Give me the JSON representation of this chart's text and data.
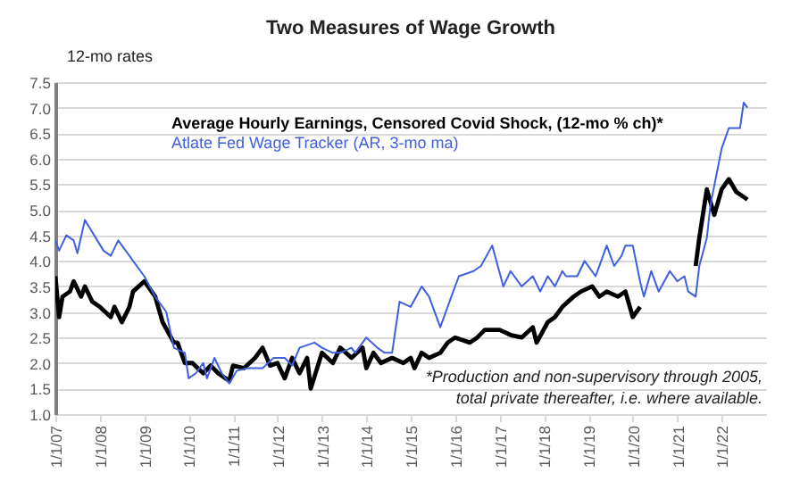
{
  "chart_data": {
    "type": "line",
    "title": "Two Measures of Wage Growth",
    "ylabel": "12-mo rates",
    "annotations": [
      "*Production and non-supervisory through 2005,\ntotal private thereafter, i.e. where available."
    ],
    "legend": "top",
    "grid": "y",
    "xlim": [
      "2007-01-01",
      "2023-01-01"
    ],
    "xticks": [
      {
        "value": "2007-01-01",
        "label": "1/1/07"
      },
      {
        "value": "2008-01-01",
        "label": "1/1/08"
      },
      {
        "value": "2009-01-01",
        "label": "1/1/09"
      },
      {
        "value": "2010-01-01",
        "label": "1/1/10"
      },
      {
        "value": "2011-01-01",
        "label": "1/1/11"
      },
      {
        "value": "2012-01-01",
        "label": "1/1/12"
      },
      {
        "value": "2013-01-01",
        "label": "1/1/13"
      },
      {
        "value": "2014-01-01",
        "label": "1/1/14"
      },
      {
        "value": "2015-01-01",
        "label": "1/1/15"
      },
      {
        "value": "2016-01-01",
        "label": "1/1/16"
      },
      {
        "value": "2017-01-01",
        "label": "1/1/17"
      },
      {
        "value": "2018-01-01",
        "label": "1/1/18"
      },
      {
        "value": "2019-01-01",
        "label": "1/1/19"
      },
      {
        "value": "2020-01-01",
        "label": "1/1/20"
      },
      {
        "value": "2021-01-01",
        "label": "1/1/21"
      },
      {
        "value": "2022-01-01",
        "label": "1/1/22"
      }
    ],
    "ylim": [
      1.0,
      7.5
    ],
    "yticks": [
      {
        "value": 1,
        "label": "1.0"
      },
      {
        "value": 1.5,
        "label": "1.5"
      },
      {
        "value": 2,
        "label": "2.0"
      },
      {
        "value": 2.5,
        "label": "2.5"
      },
      {
        "value": 3,
        "label": "3.0"
      },
      {
        "value": 3.5,
        "label": "3.5"
      },
      {
        "value": 4,
        "label": "4.0"
      },
      {
        "value": 4.5,
        "label": "4.5"
      },
      {
        "value": 5,
        "label": "5.0"
      },
      {
        "value": 5.5,
        "label": "5.5"
      },
      {
        "value": 6,
        "label": "6.0"
      },
      {
        "value": 6.5,
        "label": "6.5"
      },
      {
        "value": 7,
        "label": "7.0"
      },
      {
        "value": 7.5,
        "label": "7.5"
      }
    ],
    "series": [
      {
        "name": "Average Hourly Earnings, Censored Covid Shock,  (12-mo % ch)*",
        "color": "#000000",
        "x": [
          "2007-01",
          "2007-02",
          "2007-03",
          "2007-05",
          "2007-06",
          "2007-08",
          "2007-09",
          "2007-11",
          "2008-01",
          "2008-04",
          "2008-05",
          "2008-07",
          "2008-09",
          "2008-10",
          "2009-01",
          "2009-02",
          "2009-04",
          "2009-06",
          "2009-09",
          "2009-10",
          "2009-12",
          "2010-02",
          "2010-05",
          "2010-07",
          "2010-09",
          "2010-12",
          "2011-01",
          "2011-04",
          "2011-07",
          "2011-09",
          "2011-11",
          "2012-01",
          "2012-03",
          "2012-05",
          "2012-07",
          "2012-09",
          "2012-10",
          "2013-01",
          "2013-04",
          "2013-06",
          "2013-09",
          "2013-12",
          "2014-01",
          "2014-03",
          "2014-05",
          "2014-08",
          "2014-11",
          "2015-01",
          "2015-02",
          "2015-04",
          "2015-06",
          "2015-09",
          "2015-11",
          "2016-01",
          "2016-05",
          "2016-07",
          "2016-09",
          "2017-01",
          "2017-04",
          "2017-07",
          "2017-10",
          "2017-11",
          "2018-02",
          "2018-04",
          "2018-06",
          "2018-09",
          "2018-11",
          "2019-02",
          "2019-04",
          "2019-06",
          "2019-09",
          "2019-11",
          "2020-01",
          "2020-03",
          "2020-09",
          "2021-06",
          "2021-07",
          "2021-09",
          "2021-11",
          "2022-01",
          "2022-03",
          "2022-05",
          "2022-08"
        ],
        "values": [
          3.7,
          2.9,
          3.3,
          3.4,
          3.6,
          3.3,
          3.5,
          3.2,
          3.1,
          2.9,
          3.1,
          2.8,
          3.1,
          3.4,
          3.6,
          3.5,
          3.3,
          2.8,
          2.4,
          2.4,
          2.0,
          2.0,
          1.8,
          1.95,
          1.8,
          1.65,
          1.95,
          1.9,
          2.1,
          2.3,
          1.95,
          2.0,
          1.7,
          2.1,
          1.8,
          2.1,
          1.5,
          2.2,
          2.0,
          2.3,
          2.1,
          2.3,
          1.9,
          2.2,
          2.0,
          2.1,
          2.0,
          2.1,
          1.9,
          2.2,
          2.1,
          2.2,
          2.4,
          2.5,
          2.4,
          2.5,
          2.65,
          2.65,
          2.55,
          2.5,
          2.7,
          2.4,
          2.8,
          2.9,
          3.1,
          3.3,
          3.4,
          3.5,
          3.3,
          3.4,
          3.3,
          3.4,
          2.9,
          3.1,
          null,
          3.9,
          4.45,
          5.4,
          4.9,
          5.4,
          5.6,
          5.35,
          5.2
        ]
      },
      {
        "name": "Atlate Fed Wage Tracker (AR, 3-mo ma)",
        "color": "#3f5fe0",
        "x": [
          "2007-01",
          "2007-02",
          "2007-04",
          "2007-06",
          "2007-07",
          "2007-09",
          "2008-02",
          "2008-04",
          "2008-06",
          "2008-09",
          "2009-01",
          "2009-04",
          "2009-07",
          "2009-09",
          "2009-12",
          "2010-01",
          "2010-03",
          "2010-05",
          "2010-06",
          "2010-08",
          "2010-10",
          "2010-12",
          "2011-02",
          "2011-05",
          "2011-09",
          "2011-12",
          "2012-03",
          "2012-05",
          "2012-07",
          "2012-11",
          "2013-01",
          "2013-04",
          "2013-06",
          "2013-09",
          "2013-10",
          "2014-01",
          "2014-04",
          "2014-06",
          "2014-08",
          "2014-10",
          "2015-01",
          "2015-04",
          "2015-06",
          "2015-09",
          "2015-12",
          "2016-02",
          "2016-06",
          "2016-08",
          "2016-11",
          "2017-02",
          "2017-04",
          "2017-07",
          "2017-10",
          "2017-12",
          "2018-02",
          "2018-04",
          "2018-06",
          "2018-07",
          "2018-10",
          "2018-12",
          "2019-03",
          "2019-04",
          "2019-06",
          "2019-08",
          "2019-10",
          "2019-11",
          "2020-01",
          "2020-03",
          "2020-04",
          "2020-06",
          "2020-08",
          "2020-11",
          "2021-01",
          "2021-03",
          "2021-04",
          "2021-06",
          "2021-07",
          "2021-09",
          "2021-10",
          "2022-01",
          "2022-03",
          "2022-06",
          "2022-07",
          "2022-08"
        ],
        "values": [
          4.4,
          4.2,
          4.5,
          4.4,
          4.15,
          4.8,
          4.2,
          4.1,
          4.4,
          4.1,
          3.7,
          3.3,
          3.0,
          2.3,
          2.2,
          1.7,
          1.8,
          2.0,
          1.7,
          2.1,
          1.8,
          1.6,
          1.85,
          1.9,
          1.9,
          2.1,
          2.1,
          1.95,
          2.3,
          2.4,
          2.3,
          2.2,
          2.2,
          2.3,
          2.2,
          2.5,
          2.3,
          2.2,
          2.2,
          3.2,
          3.1,
          3.5,
          3.3,
          2.7,
          3.3,
          3.7,
          3.8,
          3.9,
          4.3,
          3.5,
          3.8,
          3.5,
          3.7,
          3.4,
          3.7,
          3.5,
          3.8,
          3.7,
          3.7,
          4.0,
          3.7,
          3.9,
          4.3,
          3.9,
          4.1,
          4.3,
          4.3,
          3.6,
          3.3,
          3.8,
          3.4,
          3.8,
          3.6,
          3.7,
          3.4,
          3.3,
          3.9,
          4.45,
          5.1,
          6.2,
          6.6,
          6.6,
          7.1,
          7.0
        ]
      }
    ]
  }
}
